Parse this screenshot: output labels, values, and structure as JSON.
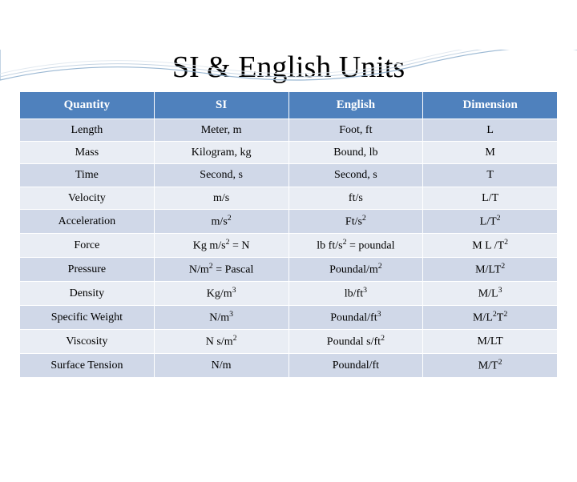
{
  "title": "SI & English Units",
  "table": {
    "type": "table",
    "header_bg": "#4f81bd",
    "header_color": "#ffffff",
    "row_odd_bg": "#d0d8e8",
    "row_even_bg": "#e9edf4",
    "border_color": "#ffffff",
    "columns": [
      "Quantity",
      "SI",
      "English",
      "Dimension"
    ],
    "rows": [
      [
        "Length",
        "Meter, m",
        "Foot, ft",
        "L"
      ],
      [
        "Mass",
        "Kilogram, kg",
        "Bound, lb",
        "M"
      ],
      [
        "Time",
        "Second, s",
        "Second, s",
        "T"
      ],
      [
        "Velocity",
        "m/s",
        "ft/s",
        "L/T"
      ],
      [
        "Acceleration",
        "m/s<sup>2</sup>",
        "Ft/s<sup>2</sup>",
        "L/T<sup>2</sup>"
      ],
      [
        "Force",
        "Kg m/s<sup>2</sup> = N",
        "lb ft/s<sup>2</sup> = poundal",
        "M L /T<sup>2</sup>"
      ],
      [
        "Pressure",
        "N/m<sup>2</sup> = Pascal",
        "Poundal/m<sup>2</sup>",
        "M/LT<sup>2</sup>"
      ],
      [
        "Density",
        "Kg/m<sup>3</sup>",
        "lb/ft<sup>3</sup>",
        "M/L<sup>3</sup>"
      ],
      [
        "Specific Weight",
        "N/m<sup>3</sup>",
        "Poundal/ft<sup>3</sup>",
        "M/L<sup>2</sup>T<sup>2</sup>"
      ],
      [
        "Viscosity",
        "N s/m<sup>2</sup>",
        "Poundal s/ft<sup>2</sup>",
        "M/LT"
      ],
      [
        "Surface Tension",
        "N/m",
        "Poundal/ft",
        "M/T<sup>2</sup>"
      ]
    ]
  },
  "decoration": {
    "wave_colors": [
      "#9bb8d3",
      "#c5d4e3",
      "#e2e9f0"
    ]
  }
}
